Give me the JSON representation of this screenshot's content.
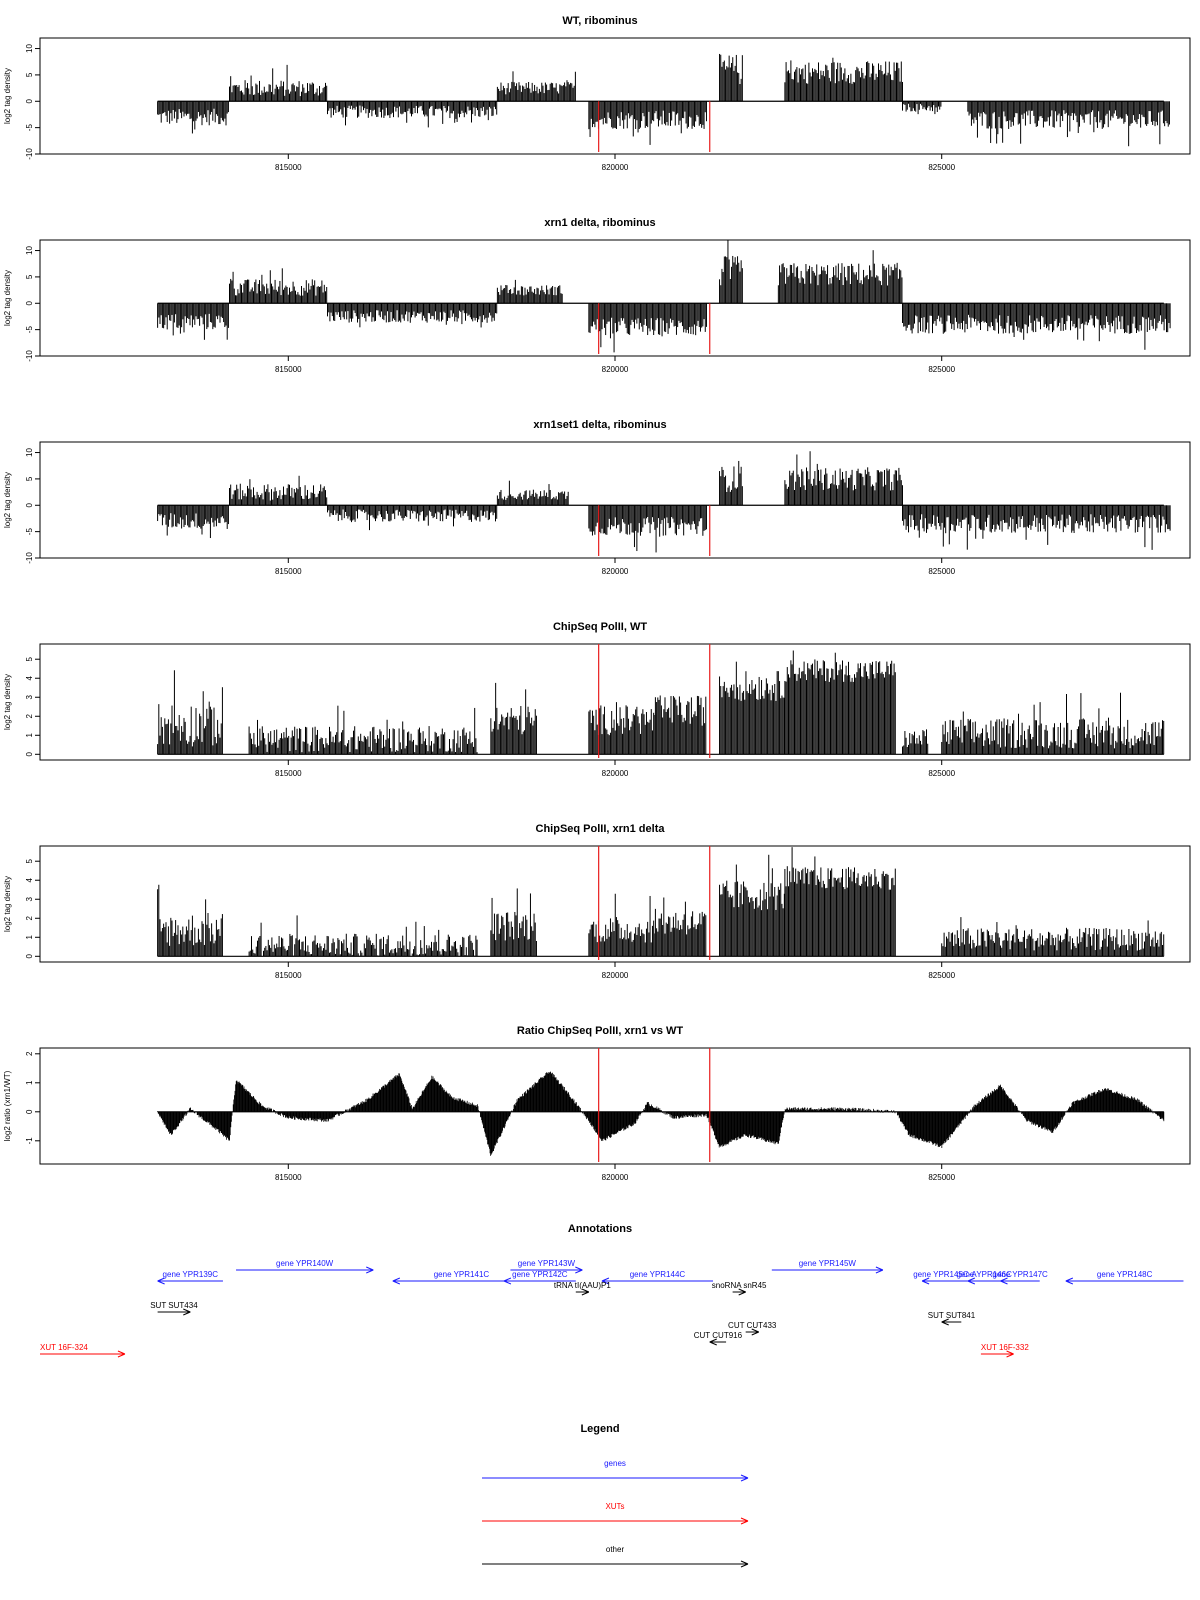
{
  "chart_data": [
    {
      "type": "area",
      "title": "WT, ribominus",
      "ylabel": "log2 tag density",
      "ylim": [
        -10,
        12
      ],
      "yticks": [
        -10,
        -5,
        0,
        5,
        10
      ],
      "xlim": [
        811200,
        828800
      ],
      "xticks": [
        815000,
        820000,
        825000
      ],
      "xtick_labels": [
        "815000",
        "820000",
        "825000"
      ],
      "markers": [
        819750,
        821450
      ],
      "segments": [
        {
          "x0": 813000,
          "x1": 814100,
          "level": -3,
          "noise": 1.6
        },
        {
          "x0": 814100,
          "x1": 815600,
          "level": 2.5,
          "noise": 1.6
        },
        {
          "x0": 815600,
          "x1": 818200,
          "level": -2,
          "noise": 1.2
        },
        {
          "x0": 818200,
          "x1": 819400,
          "level": 2.5,
          "noise": 1.2
        },
        {
          "x0": 819600,
          "x1": 821400,
          "level": -3.5,
          "noise": 1.8
        },
        {
          "x0": 821600,
          "x1": 821950,
          "level": 6,
          "noise": 3
        },
        {
          "x0": 822600,
          "x1": 824400,
          "level": 5.5,
          "noise": 2.2
        },
        {
          "x0": 824400,
          "x1": 825000,
          "level": -1.2,
          "noise": 0.8
        },
        {
          "x0": 825400,
          "x1": 828500,
          "level": -3.5,
          "noise": 1.8
        }
      ]
    },
    {
      "type": "area",
      "title": "xrn1 delta, ribominus",
      "ylabel": "log2 tag density",
      "ylim": [
        -10,
        12
      ],
      "yticks": [
        -10,
        -5,
        0,
        5,
        10
      ],
      "xlim": [
        811200,
        828800
      ],
      "xticks": [
        815000,
        820000,
        825000
      ],
      "xtick_labels": [
        "815000",
        "820000",
        "825000"
      ],
      "markers": [
        819750,
        821450
      ],
      "segments": [
        {
          "x0": 813000,
          "x1": 814100,
          "level": -3.5,
          "noise": 1.6
        },
        {
          "x0": 814100,
          "x1": 815600,
          "level": 3,
          "noise": 1.6
        },
        {
          "x0": 815600,
          "x1": 818200,
          "level": -2.5,
          "noise": 1.2
        },
        {
          "x0": 818200,
          "x1": 819200,
          "level": 2.5,
          "noise": 1.0
        },
        {
          "x0": 819600,
          "x1": 821400,
          "level": -4.5,
          "noise": 1.8
        },
        {
          "x0": 821600,
          "x1": 821950,
          "level": 6,
          "noise": 3
        },
        {
          "x0": 822500,
          "x1": 824400,
          "level": 5.5,
          "noise": 2.2
        },
        {
          "x0": 824400,
          "x1": 828500,
          "level": -4,
          "noise": 1.8
        }
      ]
    },
    {
      "type": "area",
      "title": "xrn1set1 delta, ribominus",
      "ylabel": "log2 tag density",
      "ylim": [
        -10,
        12
      ],
      "yticks": [
        -10,
        -5,
        0,
        5,
        10
      ],
      "xlim": [
        811200,
        828800
      ],
      "xticks": [
        815000,
        820000,
        825000
      ],
      "xtick_labels": [
        "815000",
        "820000",
        "825000"
      ],
      "markers": [
        819750,
        821450
      ],
      "segments": [
        {
          "x0": 813000,
          "x1": 814100,
          "level": -3,
          "noise": 1.6
        },
        {
          "x0": 814100,
          "x1": 815600,
          "level": 2.5,
          "noise": 1.6
        },
        {
          "x0": 815600,
          "x1": 818200,
          "level": -2,
          "noise": 1.2
        },
        {
          "x0": 818200,
          "x1": 819300,
          "level": 2,
          "noise": 1.0
        },
        {
          "x0": 819600,
          "x1": 821400,
          "level": -4,
          "noise": 1.8
        },
        {
          "x0": 821600,
          "x1": 821950,
          "level": 5,
          "noise": 2.5
        },
        {
          "x0": 822600,
          "x1": 824400,
          "level": 5,
          "noise": 2.2
        },
        {
          "x0": 824400,
          "x1": 828500,
          "level": -3.5,
          "noise": 1.8
        }
      ]
    },
    {
      "type": "area",
      "title": "ChipSeq PolII, WT",
      "ylabel": "log2 tag density",
      "ylim": [
        -0.3,
        5.8
      ],
      "yticks": [
        0,
        1,
        2,
        3,
        4,
        5
      ],
      "xlim": [
        811200,
        828800
      ],
      "xticks": [
        815000,
        820000,
        825000
      ],
      "xtick_labels": [
        "815000",
        "820000",
        "825000"
      ],
      "markers": [
        819750,
        821450
      ],
      "segments": [
        {
          "x0": 813000,
          "x1": 814000,
          "level": 1.6,
          "noise": 1.2
        },
        {
          "x0": 814400,
          "x1": 817900,
          "level": 0.8,
          "noise": 0.7
        },
        {
          "x0": 818100,
          "x1": 818800,
          "level": 1.8,
          "noise": 0.8
        },
        {
          "x0": 819600,
          "x1": 820600,
          "level": 1.8,
          "noise": 0.8
        },
        {
          "x0": 820600,
          "x1": 821400,
          "level": 2.3,
          "noise": 0.8
        },
        {
          "x0": 821600,
          "x1": 822600,
          "level": 3.6,
          "noise": 0.8
        },
        {
          "x0": 822600,
          "x1": 824300,
          "level": 4.4,
          "noise": 0.6
        },
        {
          "x0": 824400,
          "x1": 824800,
          "level": 0.8,
          "noise": 0.5
        },
        {
          "x0": 825000,
          "x1": 828400,
          "level": 1.1,
          "noise": 0.8
        }
      ]
    },
    {
      "type": "area",
      "title": "ChipSeq PolII, xrn1 delta",
      "ylabel": "log2 tag density",
      "ylim": [
        -0.3,
        5.8
      ],
      "yticks": [
        0,
        1,
        2,
        3,
        4,
        5
      ],
      "xlim": [
        811200,
        828800
      ],
      "xticks": [
        815000,
        820000,
        825000
      ],
      "xtick_labels": [
        "815000",
        "820000",
        "825000"
      ],
      "markers": [
        819750,
        821450
      ],
      "segments": [
        {
          "x0": 813000,
          "x1": 814000,
          "level": 1.4,
          "noise": 0.9
        },
        {
          "x0": 814400,
          "x1": 817900,
          "level": 0.6,
          "noise": 0.6
        },
        {
          "x0": 818100,
          "x1": 818800,
          "level": 1.6,
          "noise": 0.8
        },
        {
          "x0": 819600,
          "x1": 820600,
          "level": 1.4,
          "noise": 0.7
        },
        {
          "x0": 820600,
          "x1": 821400,
          "level": 1.8,
          "noise": 0.7
        },
        {
          "x0": 821600,
          "x1": 822600,
          "level": 3.2,
          "noise": 0.8
        },
        {
          "x0": 822600,
          "x1": 824300,
          "level": 4.1,
          "noise": 0.6
        },
        {
          "x0": 825000,
          "x1": 828400,
          "level": 0.9,
          "noise": 0.6
        }
      ]
    },
    {
      "type": "area",
      "title": "Ratio ChipSeq PolII, xrn1 vs WT",
      "ylabel": "log2 ratio (xrn1/WT)",
      "ylim": [
        -1.8,
        2.2
      ],
      "yticks": [
        -1,
        0,
        1,
        2
      ],
      "xlim": [
        811200,
        828800
      ],
      "xticks": [
        815000,
        820000,
        825000
      ],
      "xtick_labels": [
        "815000",
        "820000",
        "825000"
      ],
      "markers": [
        819750,
        821450
      ],
      "profile": [
        [
          813000,
          0
        ],
        [
          813200,
          -0.8
        ],
        [
          813500,
          0.1
        ],
        [
          813900,
          -0.6
        ],
        [
          814100,
          -1.0
        ],
        [
          814200,
          1.1
        ],
        [
          814600,
          0.2
        ],
        [
          815000,
          -0.2
        ],
        [
          815600,
          -0.3
        ],
        [
          816200,
          0.4
        ],
        [
          816700,
          1.3
        ],
        [
          816900,
          0.1
        ],
        [
          817200,
          1.2
        ],
        [
          817500,
          0.5
        ],
        [
          817900,
          0.2
        ],
        [
          818100,
          -1.5
        ],
        [
          818500,
          0.4
        ],
        [
          819000,
          1.4
        ],
        [
          819300,
          0.6
        ],
        [
          819600,
          -0.3
        ],
        [
          819800,
          -1.0
        ],
        [
          820300,
          -0.4
        ],
        [
          820500,
          0.3
        ],
        [
          820900,
          -0.2
        ],
        [
          821400,
          -0.1
        ],
        [
          821600,
          -1.2
        ],
        [
          822000,
          -0.8
        ],
        [
          822500,
          -1.1
        ],
        [
          822600,
          0.1
        ],
        [
          823500,
          0.1
        ],
        [
          824300,
          0.0
        ],
        [
          824500,
          -0.8
        ],
        [
          825000,
          -1.2
        ],
        [
          825500,
          0.2
        ],
        [
          825900,
          0.9
        ],
        [
          826300,
          -0.3
        ],
        [
          826700,
          -0.7
        ],
        [
          827000,
          0.3
        ],
        [
          827500,
          0.8
        ],
        [
          828000,
          0.4
        ],
        [
          828400,
          -0.3
        ]
      ]
    }
  ],
  "annotations": {
    "title": "Annotations",
    "colors": {
      "genes": "#1a1aff",
      "XUTs": "#ff0000",
      "other": "#000000"
    },
    "features": [
      {
        "label": "gene YPR139C",
        "x0": 813000,
        "x1": 814000,
        "strand": "-",
        "kind": "genes",
        "row": 1
      },
      {
        "label": "gene YPR140W",
        "x0": 814200,
        "x1": 816300,
        "strand": "+",
        "kind": "genes",
        "row": 0
      },
      {
        "label": "gene YPR141C",
        "x0": 816600,
        "x1": 818700,
        "strand": "-",
        "kind": "genes",
        "row": 1
      },
      {
        "label": "gene YPR142C",
        "x0": 818300,
        "x1": 819400,
        "strand": "-",
        "kind": "genes",
        "row": 1
      },
      {
        "label": "gene YPR143W",
        "x0": 818400,
        "x1": 819500,
        "strand": "+",
        "kind": "genes",
        "row": 0
      },
      {
        "label": "gene YPR144C",
        "x0": 819800,
        "x1": 821500,
        "strand": "-",
        "kind": "genes",
        "row": 1
      },
      {
        "label": "gene YPR145W",
        "x0": 822400,
        "x1": 824100,
        "strand": "+",
        "kind": "genes",
        "row": 0
      },
      {
        "label": "gene YPR145C-A",
        "x0": 824700,
        "x1": 825400,
        "strand": "-",
        "kind": "genes",
        "row": 1
      },
      {
        "label": "gene YPR146C",
        "x0": 825400,
        "x1": 825900,
        "strand": "-",
        "kind": "genes",
        "row": 1
      },
      {
        "label": "gene YPR147C",
        "x0": 825900,
        "x1": 826500,
        "strand": "-",
        "kind": "genes",
        "row": 1
      },
      {
        "label": "gene YPR148C",
        "x0": 826900,
        "x1": 828700,
        "strand": "-",
        "kind": "genes",
        "row": 1
      },
      {
        "label": "tRNA tI(AAU)P1",
        "x0": 819400,
        "x1": 819600,
        "strand": "+",
        "kind": "other",
        "row": 2
      },
      {
        "label": "snoRNA snR45",
        "x0": 821800,
        "x1": 822000,
        "strand": "+",
        "kind": "other",
        "row": 2
      },
      {
        "label": "SUT SUT434",
        "x0": 813000,
        "x1": 813500,
        "strand": "+",
        "kind": "other",
        "row": 3
      },
      {
        "label": "SUT SUT841",
        "x0": 825000,
        "x1": 825300,
        "strand": "-",
        "kind": "other",
        "row": 4
      },
      {
        "label": "CUT CUT433",
        "x0": 822000,
        "x1": 822200,
        "strand": "+",
        "kind": "other",
        "row": 5
      },
      {
        "label": "CUT CUT916",
        "x0": 821450,
        "x1": 821700,
        "strand": "-",
        "kind": "other",
        "row": 6
      },
      {
        "label": "XUT 16F-324",
        "x0": 811200,
        "x1": 812500,
        "strand": "+",
        "kind": "XUTs",
        "row": 7
      },
      {
        "label": "XUT 16F-332",
        "x0": 825600,
        "x1": 826100,
        "strand": "+",
        "kind": "XUTs",
        "row": 7
      }
    ]
  },
  "legend": {
    "title": "Legend",
    "items": [
      {
        "label": "genes",
        "color": "#1a1aff"
      },
      {
        "label": "XUTs",
        "color": "#ff0000"
      },
      {
        "label": "other",
        "color": "#000000"
      }
    ]
  }
}
